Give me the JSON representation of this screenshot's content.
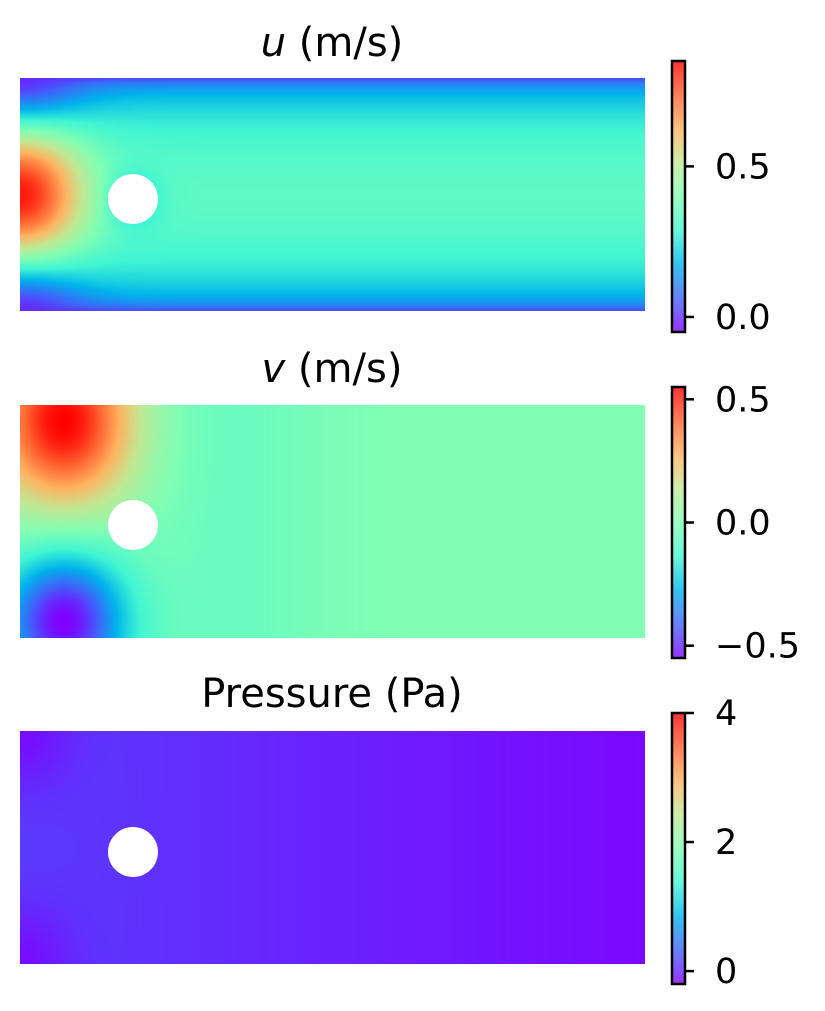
{
  "colormap": "rainbow",
  "colormap_stops": [
    "#8000ff",
    "#4062fa",
    "#01b3ec",
    "#41f6d3",
    "#81feb4",
    "#c1e994",
    "#ffb360",
    "#ff6130",
    "#ff0000"
  ],
  "obstacle_color": "#ffffff",
  "chart_data": [
    {
      "type": "heatmap",
      "title_symbol": "u",
      "title_suffix": " (m/s)",
      "colorbar": {
        "min": -0.05,
        "max": 0.85,
        "ticks": [
          0.0,
          0.5
        ],
        "tick_labels": [
          "0.0",
          "0.5"
        ]
      },
      "field": "u",
      "legend": "right"
    },
    {
      "type": "heatmap",
      "title_symbol": "v",
      "title_suffix": " (m/s)",
      "colorbar": {
        "min": -0.55,
        "max": 0.55,
        "ticks": [
          -0.5,
          0.0,
          0.5
        ],
        "tick_labels": [
          "−0.5",
          "0.0",
          "0.5"
        ]
      },
      "field": "v",
      "legend": "right"
    },
    {
      "type": "heatmap",
      "title_symbol": "",
      "title_suffix": "Pressure (Pa)",
      "colorbar": {
        "min": -0.2,
        "max": 4.0,
        "ticks": [
          0,
          2,
          4
        ],
        "tick_labels": [
          "0",
          "2",
          "4"
        ]
      },
      "field": "p",
      "legend": "right"
    }
  ]
}
